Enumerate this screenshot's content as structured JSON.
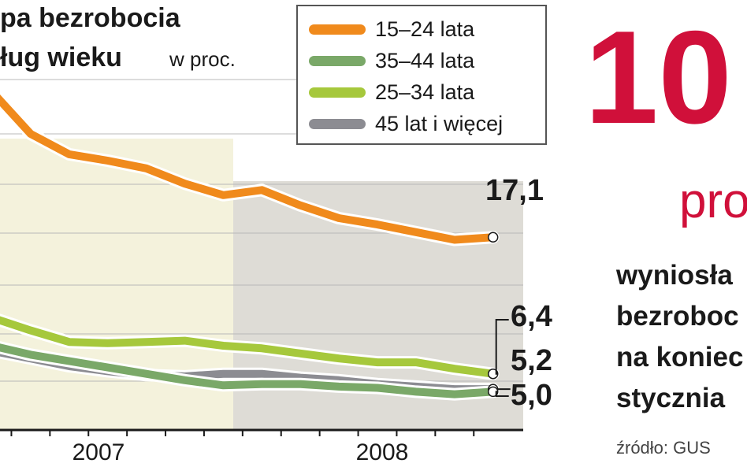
{
  "header": {
    "title_line1": "pa bezrobocia",
    "title_line2": "ług wieku",
    "unit": "w proc."
  },
  "highlight": {
    "value": "10",
    "unit": "pro",
    "desc_line1": "wyniosła",
    "desc_line2": "bezroboc",
    "desc_line3": "na koniec",
    "desc_line4": "stycznia",
    "source": "źródło: GUS"
  },
  "colors": {
    "orange": "#f08a1c",
    "green_dark": "#7aa868",
    "green_light": "#a6c83c",
    "gray": "#8c8c92",
    "period_2007": "#f4f2dc",
    "period_2008": "#dedcd6",
    "accent_red": "#d0103a"
  },
  "chart_data": {
    "type": "line",
    "title": "",
    "xlabel": "",
    "ylabel": "w proc.",
    "categories": [
      "2006-12",
      "2007-01",
      "2007-02",
      "2007-03",
      "2007-04",
      "2007-05",
      "2007-06",
      "2007-07",
      "2007-08",
      "2007-09",
      "2007-10",
      "2007-11",
      "2007-12",
      "2008-01"
    ],
    "year_labels": [
      "2007",
      "2008"
    ],
    "series": [
      {
        "name": "15–24 lata",
        "color": "#f08a1c",
        "values": [
          28.5,
          25.2,
          23.6,
          23.1,
          22.5,
          21.3,
          20.4,
          20.8,
          19.6,
          18.6,
          18.1,
          17.5,
          16.9,
          17.1
        ]
      },
      {
        "name": "35–44 lata",
        "color": "#7aa868",
        "values": [
          8.6,
          7.9,
          7.4,
          6.9,
          6.4,
          5.9,
          5.5,
          5.6,
          5.6,
          5.4,
          5.3,
          5.0,
          4.8,
          5.0
        ]
      },
      {
        "name": "25–34 lata",
        "color": "#a6c83c",
        "values": [
          10.8,
          9.8,
          8.9,
          8.8,
          8.9,
          9.0,
          8.6,
          8.4,
          8.0,
          7.6,
          7.3,
          7.3,
          6.8,
          6.4
        ]
      },
      {
        "name": "45 lat i więcej",
        "color": "#8c8c92",
        "values": [
          8.2,
          7.6,
          7.0,
          6.6,
          6.3,
          6.2,
          6.4,
          6.4,
          6.1,
          5.9,
          5.6,
          5.4,
          5.2,
          5.2
        ]
      }
    ],
    "end_labels": [
      "17,1",
      "6,4",
      "5,2",
      "5,0"
    ],
    "ylim": [
      2,
      31
    ],
    "grid": true,
    "legend_position": "top"
  }
}
